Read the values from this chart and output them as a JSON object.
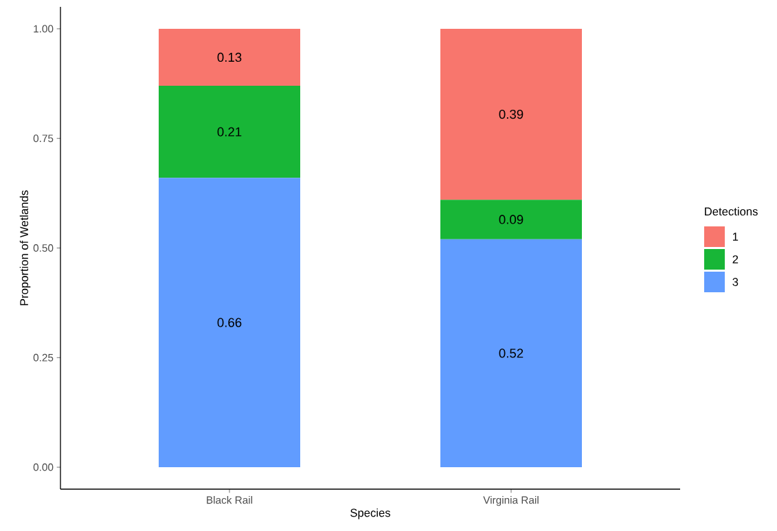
{
  "chart_data": {
    "type": "bar",
    "stacked": true,
    "xlabel": "Species",
    "ylabel": "Proportion of Wetlands",
    "legend_title": "Detections",
    "legend": "right",
    "data_labels": true,
    "categories": [
      "Black Rail",
      "Virginia Rail"
    ],
    "series": [
      {
        "name": "3",
        "color": "#619cff",
        "values": [
          0.66,
          0.52
        ]
      },
      {
        "name": "2",
        "color": "#18b637",
        "values": [
          0.21,
          0.09
        ]
      },
      {
        "name": "1",
        "color": "#f8766d",
        "values": [
          0.13,
          0.39
        ]
      }
    ],
    "ylim": [
      -0.05,
      1.05
    ],
    "yticks": [
      {
        "value": 0,
        "label": "0.00"
      },
      {
        "value": 0.25,
        "label": "0.25"
      },
      {
        "value": 0.5,
        "label": "0.50"
      },
      {
        "value": 0.75,
        "label": "0.75"
      },
      {
        "value": 1,
        "label": "1.00"
      }
    ]
  }
}
